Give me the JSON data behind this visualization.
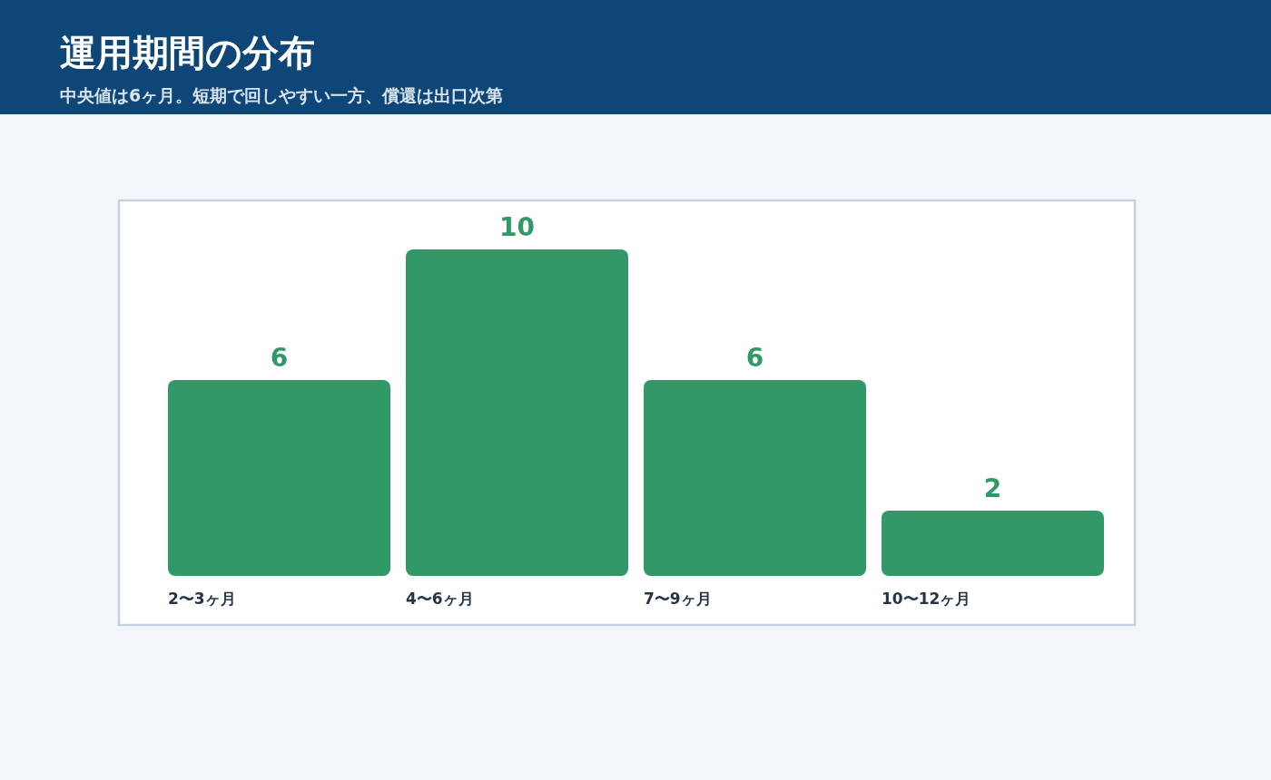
{
  "chart_data": {
    "type": "bar",
    "title": "運用期間の分布",
    "subtitle": "中央値は6ヶ月。短期で回しやすい一方、償還は出口次第",
    "categories": [
      "2〜3ヶ月",
      "4〜6ヶ月",
      "7〜9ヶ月",
      "10〜12ヶ月"
    ],
    "values": [
      6,
      10,
      6,
      2
    ],
    "color": "#319968",
    "data_labels": true
  }
}
